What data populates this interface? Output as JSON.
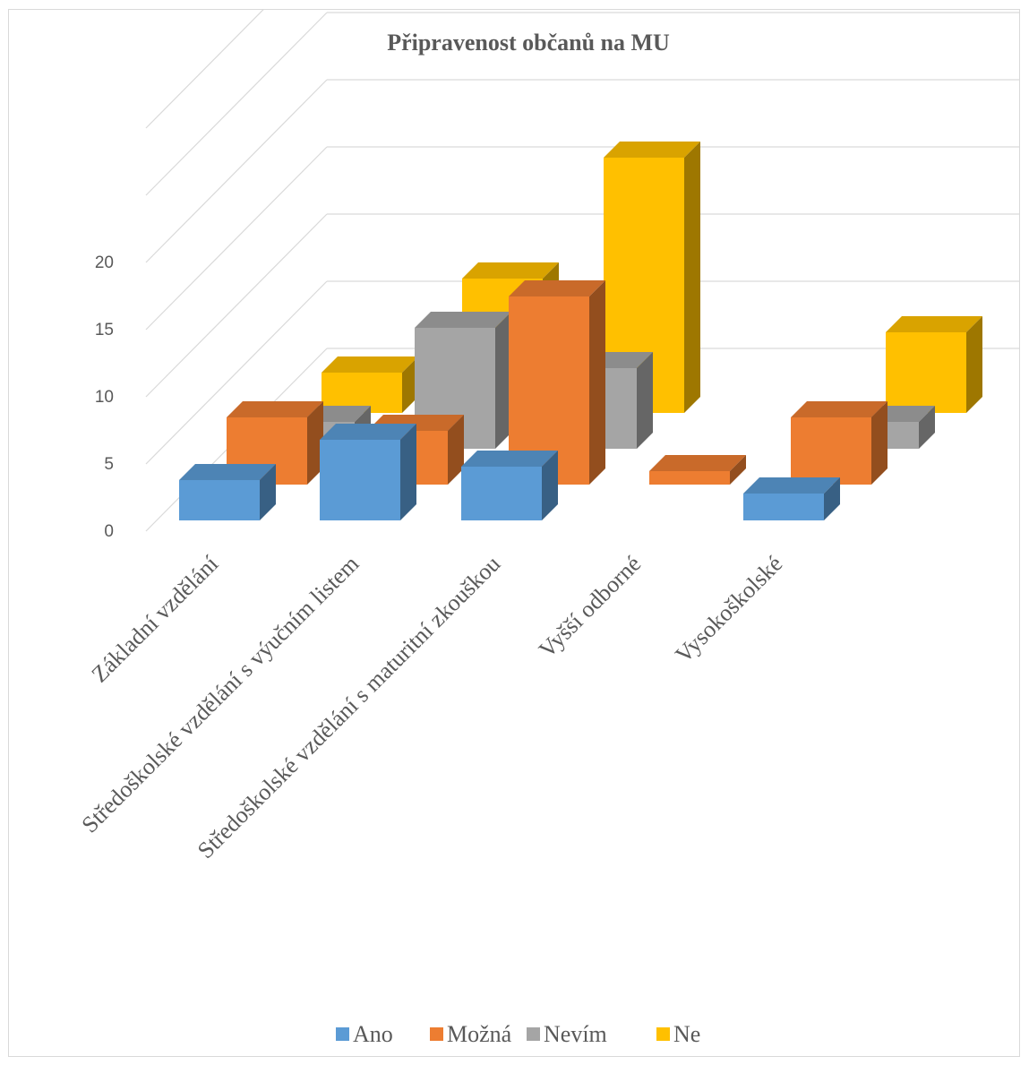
{
  "chart_data": {
    "type": "bar",
    "title": "Připravenost občanů na MU",
    "categories": [
      "Základní vzdělání",
      "Středoškolské vzdělání s výučním listem",
      "Středoškolské vzdělání s maturitní zkouškou",
      "Vyšší odborné",
      "Vysokoškolské"
    ],
    "series": [
      {
        "name": "Ano",
        "color": "#5B9BD5",
        "values": [
          3,
          6,
          4,
          0,
          2
        ]
      },
      {
        "name": "Možná",
        "color": "#ED7D31",
        "values": [
          5,
          4,
          14,
          1,
          5
        ]
      },
      {
        "name": "Nevím",
        "color": "#A5A5A5",
        "values": [
          2,
          9,
          6,
          0,
          2
        ]
      },
      {
        "name": "Ne",
        "color": "#FFC000",
        "values": [
          3,
          10,
          19,
          0,
          6
        ]
      }
    ],
    "yticks": [
      "0",
      "5",
      "10",
      "15",
      "20"
    ],
    "ylim": [
      0,
      20
    ],
    "xlabel": "",
    "ylabel": "",
    "grid": true,
    "legend_position": "bottom",
    "style": "3d-column"
  }
}
